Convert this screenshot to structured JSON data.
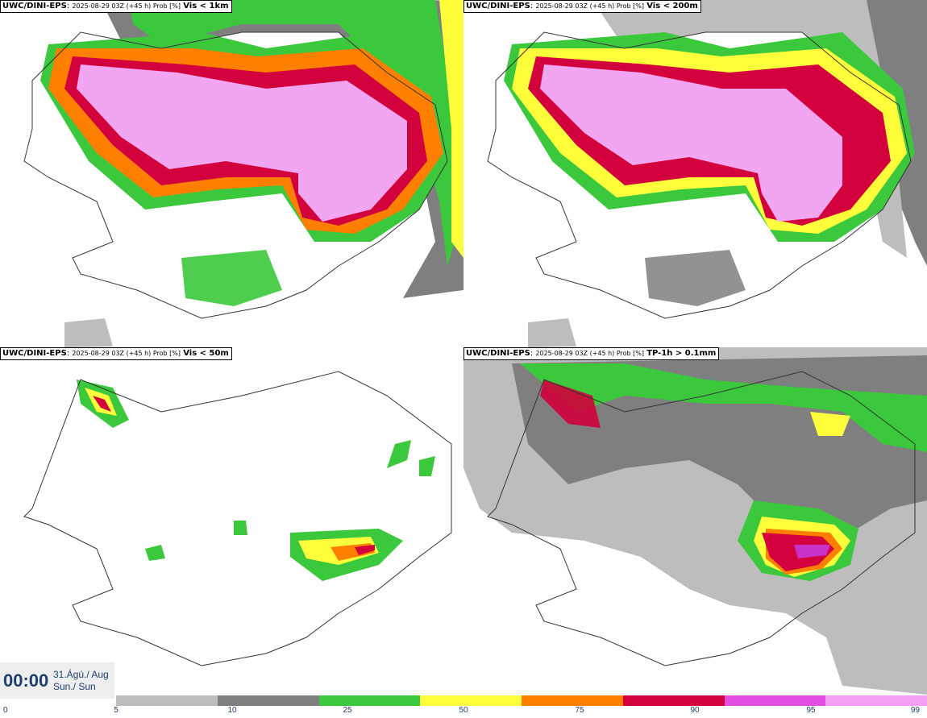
{
  "panels": [
    {
      "source": "UWC/DINI-EPS",
      "meta": "2025-08-29 03Z (+45 h) Prob [%]",
      "field": "Vis < 1km"
    },
    {
      "source": "UWC/DINI-EPS",
      "meta": "2025-08-29 03Z (+45 h) Prob [%]",
      "field": "Vis < 200m"
    },
    {
      "source": "UWC/DINI-EPS",
      "meta": "2025-08-29 03Z (+45 h) Prob [%]",
      "field": "Vis < 50m"
    },
    {
      "source": "UWC/DINI-EPS",
      "meta": "2025-08-29 03Z (+45 h) Prob [%]",
      "field": "TP-1h > 0.1mm"
    }
  ],
  "valid_time": {
    "clock": "00:00",
    "date_line1": "31.Ágú./ Aug",
    "date_line2": "Sun./ Sun"
  },
  "legend": {
    "ticks": [
      "0",
      "5",
      "10",
      "25",
      "50",
      "75",
      "90",
      "95",
      "99"
    ],
    "colors": [
      "#bdbdbd",
      "#7f7f7f",
      "#3cc83c",
      "#ffff3c",
      "#ff8000",
      "#d2003c",
      "#e24ee2",
      "#f5a0f5"
    ]
  },
  "map_colors": {
    "grey_light": "#bdbdbd",
    "grey_dark": "#7f7f7f",
    "green": "#3cc83c",
    "yellow": "#ffff3c",
    "orange": "#ff8000",
    "red": "#d2003c",
    "magenta": "#c832c8",
    "pink": "#f2a6f2",
    "coast": "#333333"
  }
}
